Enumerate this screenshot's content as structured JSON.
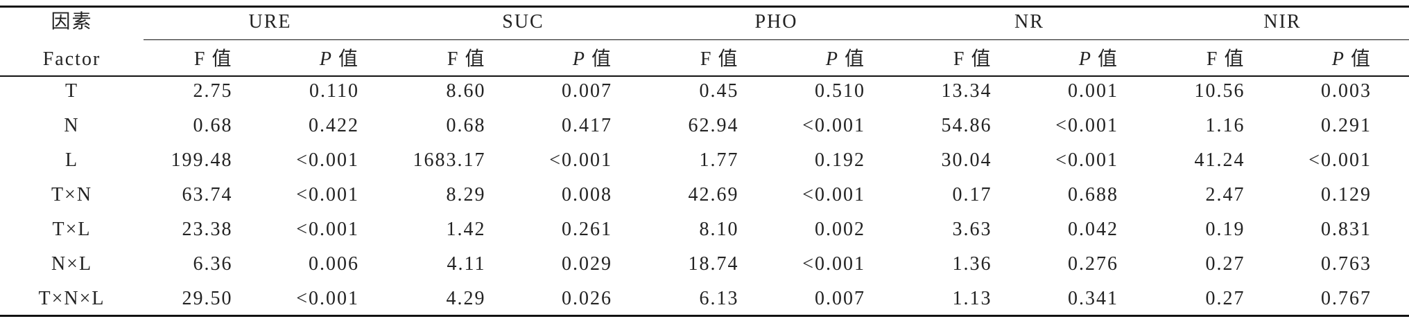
{
  "table": {
    "header": {
      "factor_zh": "因素",
      "factor_en": "Factor",
      "groups": [
        "URE",
        "SUC",
        "PHO",
        "NR",
        "NIR"
      ],
      "subheaders": [
        {
          "symbol": "F",
          "unit": "值"
        },
        {
          "symbol": "P",
          "unit": "值"
        }
      ]
    },
    "rows": [
      [
        "T",
        "2.75",
        "0.110",
        "8.60",
        "0.007",
        "0.45",
        "0.510",
        "13.34",
        "0.001",
        "10.56",
        "0.003"
      ],
      [
        "N",
        "0.68",
        "0.422",
        "0.68",
        "0.417",
        "62.94",
        "<0.001",
        "54.86",
        "<0.001",
        "1.16",
        "0.291"
      ],
      [
        "L",
        "199.48",
        "<0.001",
        "1683.17",
        "<0.001",
        "1.77",
        "0.192",
        "30.04",
        "<0.001",
        "41.24",
        "<0.001"
      ],
      [
        "T×N",
        "63.74",
        "<0.001",
        "8.29",
        "0.008",
        "42.69",
        "<0.001",
        "0.17",
        "0.688",
        "2.47",
        "0.129"
      ],
      [
        "T×L",
        "23.38",
        "<0.001",
        "1.42",
        "0.261",
        "8.10",
        "0.002",
        "3.63",
        "0.042",
        "0.19",
        "0.831"
      ],
      [
        "N×L",
        "6.36",
        "0.006",
        "4.11",
        "0.029",
        "18.74",
        "<0.001",
        "1.36",
        "0.276",
        "0.27",
        "0.763"
      ],
      [
        "T×N×L",
        "29.50",
        "<0.001",
        "4.29",
        "0.026",
        "6.13",
        "0.007",
        "1.13",
        "0.341",
        "0.27",
        "0.767"
      ]
    ]
  }
}
